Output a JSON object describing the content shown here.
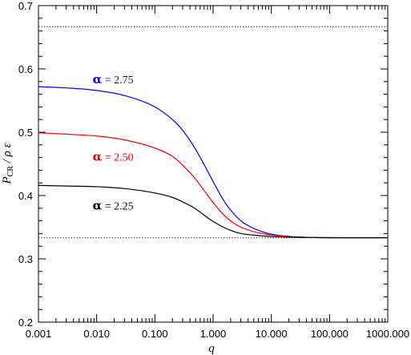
{
  "chart_data": {
    "type": "line",
    "xscale": "log",
    "xlim": [
      0.001,
      1000
    ],
    "ylim": [
      0.2,
      0.7
    ],
    "xlabel": "q",
    "ylabel": {
      "main": "P",
      "subscript": "CR",
      "rest": " / ρ ε"
    },
    "x_tick_labels": [
      "0.001",
      "0.010",
      "0.100",
      "1.000",
      "10.000",
      "100.000",
      "1000.000"
    ],
    "y_tick_labels": [
      "0.2",
      "0.3",
      "0.4",
      "0.5",
      "0.6",
      "0.7"
    ],
    "reference_lines": [
      {
        "y": 0.6667,
        "style": "dotted",
        "color": "#000000"
      },
      {
        "y": 0.3333,
        "style": "dotted",
        "color": "#000000"
      }
    ],
    "x": [
      0.001,
      0.003,
      0.01,
      0.03,
      0.1,
      0.2,
      0.3,
      0.5,
      0.7,
      1,
      1.5,
      2,
      3,
      5,
      7,
      10,
      20,
      30,
      50,
      100,
      200,
      500,
      1000
    ],
    "series": [
      {
        "name": "α = 2.75",
        "label_parts": {
          "greek": "α",
          "text": " = 2.75"
        },
        "color": "#0000ff",
        "values": [
          0.572,
          0.57,
          0.566,
          0.558,
          0.54,
          0.52,
          0.503,
          0.473,
          0.449,
          0.422,
          0.393,
          0.377,
          0.36,
          0.348,
          0.343,
          0.339,
          0.3355,
          0.3345,
          0.3338,
          0.3335,
          0.3334,
          0.3333,
          0.3333
        ]
      },
      {
        "name": "α = 2.50",
        "label_parts": {
          "greek": "α",
          "text": " = 2.50"
        },
        "color": "#ff0000",
        "values": [
          0.499,
          0.497,
          0.494,
          0.488,
          0.475,
          0.462,
          0.448,
          0.426,
          0.408,
          0.389,
          0.37,
          0.36,
          0.35,
          0.343,
          0.34,
          0.3375,
          0.3352,
          0.3344,
          0.3338,
          0.3335,
          0.3334,
          0.3333,
          0.3333
        ]
      },
      {
        "name": "α = 2.25",
        "label_parts": {
          "greek": "α",
          "text": " = 2.25"
        },
        "color": "#000000",
        "values": [
          0.416,
          0.415,
          0.414,
          0.411,
          0.404,
          0.397,
          0.39,
          0.379,
          0.369,
          0.359,
          0.35,
          0.345,
          0.34,
          0.3375,
          0.3362,
          0.3352,
          0.3343,
          0.3339,
          0.3336,
          0.3334,
          0.3333,
          0.3333,
          0.3333
        ]
      }
    ],
    "annotations": [
      {
        "series_index": 0,
        "x": 0.01,
        "y": 0.577
      },
      {
        "series_index": 1,
        "x": 0.01,
        "y": 0.455
      },
      {
        "series_index": 2,
        "x": 0.01,
        "y": 0.378
      }
    ]
  }
}
